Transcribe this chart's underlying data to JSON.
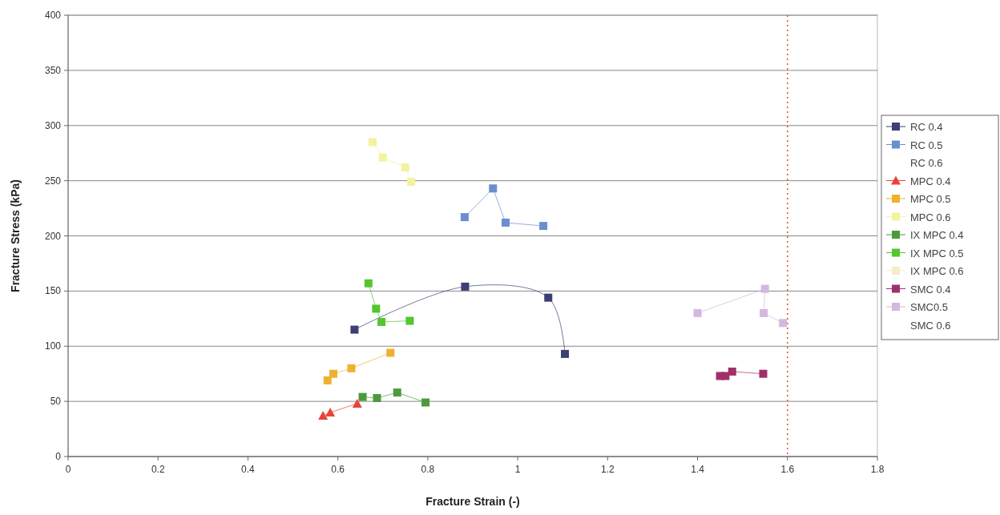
{
  "chart_data": {
    "type": "line",
    "xlabel": "Fracture Strain (-)",
    "ylabel": "Fracture Stress (kPa)",
    "xlim": [
      0,
      1.8
    ],
    "xticks": [
      0,
      0.2,
      0.4,
      0.6,
      0.8,
      1,
      1.2,
      1.4,
      1.6,
      1.8
    ],
    "ylim": [
      0,
      400
    ],
    "yticks": [
      0,
      50,
      100,
      150,
      200,
      250,
      300,
      350,
      400
    ],
    "grid": "y",
    "legend": "right",
    "marker": "square",
    "series": [
      {
        "name": "RC 0.4",
        "color": "#3b3f73",
        "x": [
          0.637,
          0.883,
          1.068,
          1.105
        ],
        "values": [
          115,
          154,
          144,
          93
        ]
      },
      {
        "name": "RC 0.5",
        "color": "#6b8fce",
        "x": [
          0.882,
          0.945,
          0.973,
          1.057
        ],
        "values": [
          217,
          243,
          212,
          209
        ]
      },
      {
        "name": "RC 0.6"
      },
      {
        "name": "MPC 0.4",
        "color": "#e8443a",
        "marker": "triangle",
        "x": [
          0.567,
          0.583,
          0.643
        ],
        "values": [
          37,
          40,
          48
        ]
      },
      {
        "name": "MPC 0.5",
        "color": "#f0b030",
        "x": [
          0.577,
          0.59,
          0.63,
          0.717
        ],
        "values": [
          69,
          75,
          80,
          94
        ]
      },
      {
        "name": "MPC 0.6",
        "color": "#f2f2a0",
        "x": [
          0.677,
          0.7,
          0.75,
          0.763
        ],
        "values": [
          285,
          271,
          262,
          249
        ]
      },
      {
        "name": "IX MPC 0.4",
        "color": "#4c9a3c",
        "x": [
          0.655,
          0.687,
          0.732,
          0.795
        ],
        "values": [
          54,
          53,
          58,
          49
        ]
      },
      {
        "name": "IX MPC 0.5",
        "color": "#55c530",
        "x": [
          0.668,
          0.685,
          0.697,
          0.76
        ],
        "values": [
          157,
          134,
          122,
          123
        ]
      },
      {
        "name": "IX MPC 0.6",
        "color": "#f0f0c0"
      },
      {
        "name": "SMC 0.4",
        "color": "#a0306a",
        "x": [
          1.45,
          1.462,
          1.477,
          1.546
        ],
        "values": [
          73,
          73,
          77,
          75
        ]
      },
      {
        "name": "SMC0.5",
        "color": "#d4b8e0",
        "x": [
          1.4,
          1.55,
          1.547,
          1.59
        ],
        "values": [
          130,
          152,
          130,
          121
        ]
      },
      {
        "name": "SMC 0.6"
      }
    ],
    "ref_lines": [
      {
        "axis": "x",
        "value": 1.6,
        "color": "#e05030",
        "line_style": "dotted"
      }
    ]
  }
}
